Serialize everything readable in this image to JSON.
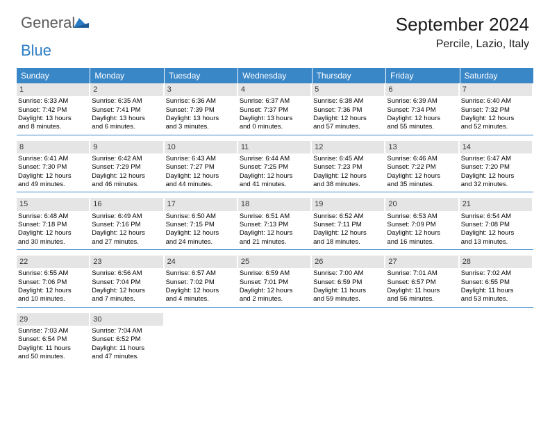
{
  "logo": {
    "general": "General",
    "blue": "Blue"
  },
  "title": "September 2024",
  "location": "Percile, Lazio, Italy",
  "colors": {
    "header_bg": "#3a87c8",
    "header_text": "#ffffff",
    "daynum_bg": "#e5e5e5",
    "rule": "#3a87c8",
    "logo_gray": "#5a5a5a",
    "logo_blue": "#2b7cc4"
  },
  "day_headers": [
    "Sunday",
    "Monday",
    "Tuesday",
    "Wednesday",
    "Thursday",
    "Friday",
    "Saturday"
  ],
  "weeks": [
    [
      {
        "d": "1",
        "sr": "Sunrise: 6:33 AM",
        "ss": "Sunset: 7:42 PM",
        "dl1": "Daylight: 13 hours",
        "dl2": "and 8 minutes."
      },
      {
        "d": "2",
        "sr": "Sunrise: 6:35 AM",
        "ss": "Sunset: 7:41 PM",
        "dl1": "Daylight: 13 hours",
        "dl2": "and 6 minutes."
      },
      {
        "d": "3",
        "sr": "Sunrise: 6:36 AM",
        "ss": "Sunset: 7:39 PM",
        "dl1": "Daylight: 13 hours",
        "dl2": "and 3 minutes."
      },
      {
        "d": "4",
        "sr": "Sunrise: 6:37 AM",
        "ss": "Sunset: 7:37 PM",
        "dl1": "Daylight: 13 hours",
        "dl2": "and 0 minutes."
      },
      {
        "d": "5",
        "sr": "Sunrise: 6:38 AM",
        "ss": "Sunset: 7:36 PM",
        "dl1": "Daylight: 12 hours",
        "dl2": "and 57 minutes."
      },
      {
        "d": "6",
        "sr": "Sunrise: 6:39 AM",
        "ss": "Sunset: 7:34 PM",
        "dl1": "Daylight: 12 hours",
        "dl2": "and 55 minutes."
      },
      {
        "d": "7",
        "sr": "Sunrise: 6:40 AM",
        "ss": "Sunset: 7:32 PM",
        "dl1": "Daylight: 12 hours",
        "dl2": "and 52 minutes."
      }
    ],
    [
      {
        "d": "8",
        "sr": "Sunrise: 6:41 AM",
        "ss": "Sunset: 7:30 PM",
        "dl1": "Daylight: 12 hours",
        "dl2": "and 49 minutes."
      },
      {
        "d": "9",
        "sr": "Sunrise: 6:42 AM",
        "ss": "Sunset: 7:29 PM",
        "dl1": "Daylight: 12 hours",
        "dl2": "and 46 minutes."
      },
      {
        "d": "10",
        "sr": "Sunrise: 6:43 AM",
        "ss": "Sunset: 7:27 PM",
        "dl1": "Daylight: 12 hours",
        "dl2": "and 44 minutes."
      },
      {
        "d": "11",
        "sr": "Sunrise: 6:44 AM",
        "ss": "Sunset: 7:25 PM",
        "dl1": "Daylight: 12 hours",
        "dl2": "and 41 minutes."
      },
      {
        "d": "12",
        "sr": "Sunrise: 6:45 AM",
        "ss": "Sunset: 7:23 PM",
        "dl1": "Daylight: 12 hours",
        "dl2": "and 38 minutes."
      },
      {
        "d": "13",
        "sr": "Sunrise: 6:46 AM",
        "ss": "Sunset: 7:22 PM",
        "dl1": "Daylight: 12 hours",
        "dl2": "and 35 minutes."
      },
      {
        "d": "14",
        "sr": "Sunrise: 6:47 AM",
        "ss": "Sunset: 7:20 PM",
        "dl1": "Daylight: 12 hours",
        "dl2": "and 32 minutes."
      }
    ],
    [
      {
        "d": "15",
        "sr": "Sunrise: 6:48 AM",
        "ss": "Sunset: 7:18 PM",
        "dl1": "Daylight: 12 hours",
        "dl2": "and 30 minutes."
      },
      {
        "d": "16",
        "sr": "Sunrise: 6:49 AM",
        "ss": "Sunset: 7:16 PM",
        "dl1": "Daylight: 12 hours",
        "dl2": "and 27 minutes."
      },
      {
        "d": "17",
        "sr": "Sunrise: 6:50 AM",
        "ss": "Sunset: 7:15 PM",
        "dl1": "Daylight: 12 hours",
        "dl2": "and 24 minutes."
      },
      {
        "d": "18",
        "sr": "Sunrise: 6:51 AM",
        "ss": "Sunset: 7:13 PM",
        "dl1": "Daylight: 12 hours",
        "dl2": "and 21 minutes."
      },
      {
        "d": "19",
        "sr": "Sunrise: 6:52 AM",
        "ss": "Sunset: 7:11 PM",
        "dl1": "Daylight: 12 hours",
        "dl2": "and 18 minutes."
      },
      {
        "d": "20",
        "sr": "Sunrise: 6:53 AM",
        "ss": "Sunset: 7:09 PM",
        "dl1": "Daylight: 12 hours",
        "dl2": "and 16 minutes."
      },
      {
        "d": "21",
        "sr": "Sunrise: 6:54 AM",
        "ss": "Sunset: 7:08 PM",
        "dl1": "Daylight: 12 hours",
        "dl2": "and 13 minutes."
      }
    ],
    [
      {
        "d": "22",
        "sr": "Sunrise: 6:55 AM",
        "ss": "Sunset: 7:06 PM",
        "dl1": "Daylight: 12 hours",
        "dl2": "and 10 minutes."
      },
      {
        "d": "23",
        "sr": "Sunrise: 6:56 AM",
        "ss": "Sunset: 7:04 PM",
        "dl1": "Daylight: 12 hours",
        "dl2": "and 7 minutes."
      },
      {
        "d": "24",
        "sr": "Sunrise: 6:57 AM",
        "ss": "Sunset: 7:02 PM",
        "dl1": "Daylight: 12 hours",
        "dl2": "and 4 minutes."
      },
      {
        "d": "25",
        "sr": "Sunrise: 6:59 AM",
        "ss": "Sunset: 7:01 PM",
        "dl1": "Daylight: 12 hours",
        "dl2": "and 2 minutes."
      },
      {
        "d": "26",
        "sr": "Sunrise: 7:00 AM",
        "ss": "Sunset: 6:59 PM",
        "dl1": "Daylight: 11 hours",
        "dl2": "and 59 minutes."
      },
      {
        "d": "27",
        "sr": "Sunrise: 7:01 AM",
        "ss": "Sunset: 6:57 PM",
        "dl1": "Daylight: 11 hours",
        "dl2": "and 56 minutes."
      },
      {
        "d": "28",
        "sr": "Sunrise: 7:02 AM",
        "ss": "Sunset: 6:55 PM",
        "dl1": "Daylight: 11 hours",
        "dl2": "and 53 minutes."
      }
    ],
    [
      {
        "d": "29",
        "sr": "Sunrise: 7:03 AM",
        "ss": "Sunset: 6:54 PM",
        "dl1": "Daylight: 11 hours",
        "dl2": "and 50 minutes."
      },
      {
        "d": "30",
        "sr": "Sunrise: 7:04 AM",
        "ss": "Sunset: 6:52 PM",
        "dl1": "Daylight: 11 hours",
        "dl2": "and 47 minutes."
      },
      null,
      null,
      null,
      null,
      null
    ]
  ]
}
